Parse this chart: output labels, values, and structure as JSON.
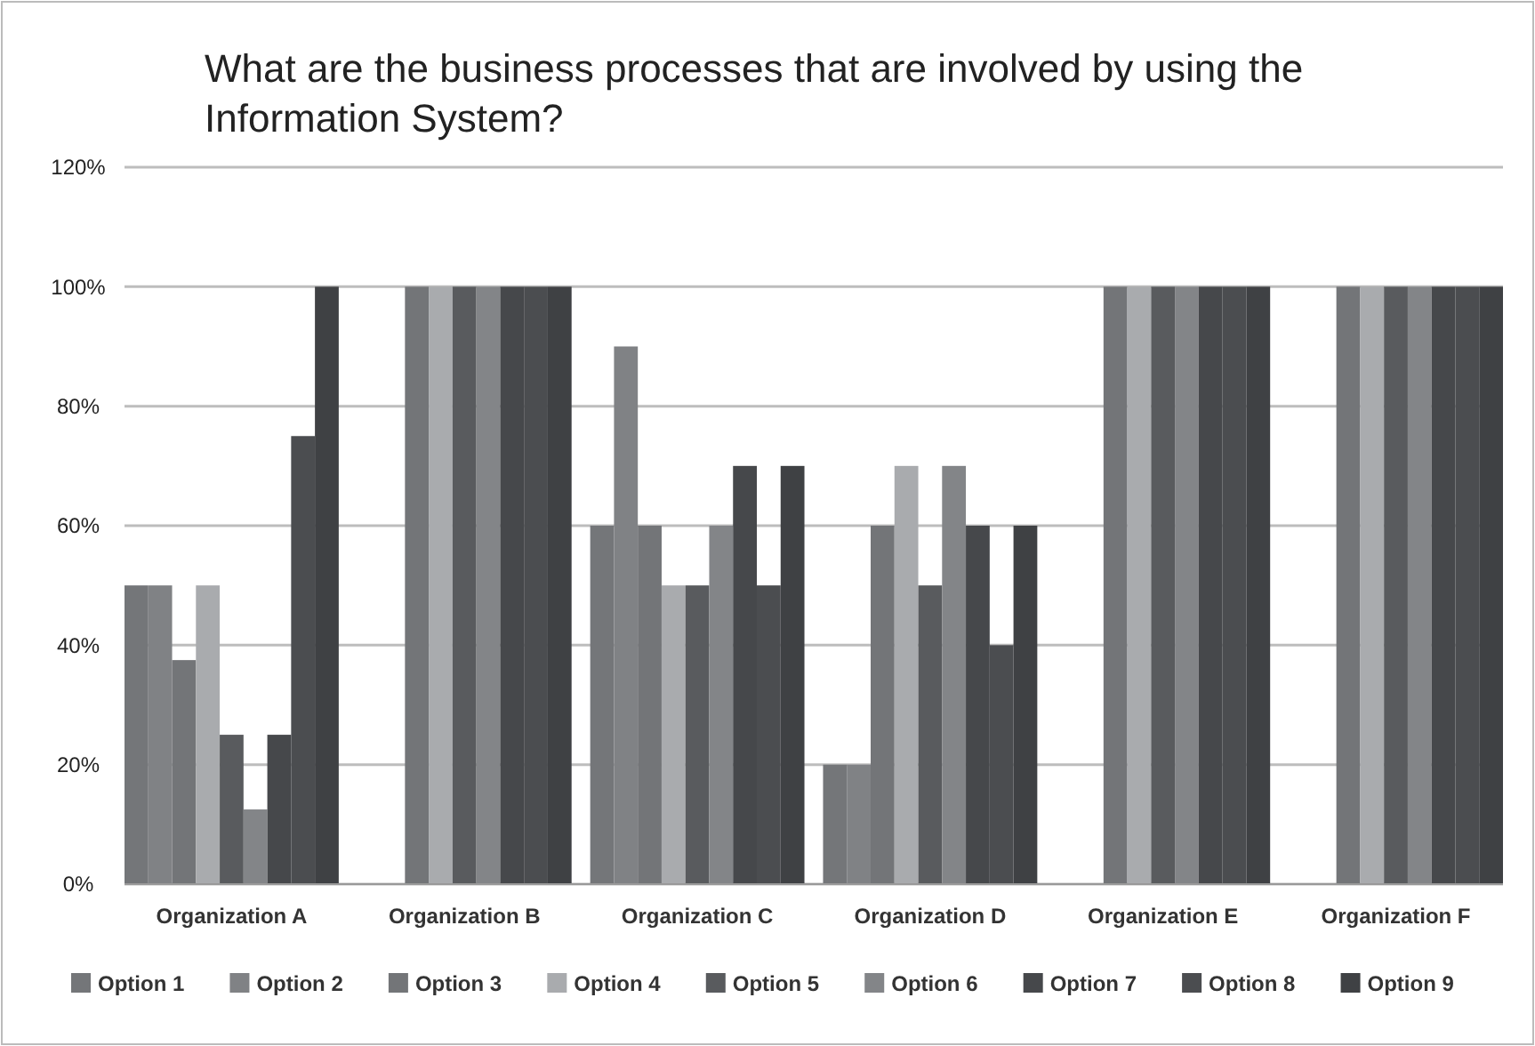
{
  "chart_data": {
    "type": "bar",
    "title": "What are the business processes that are involved by using the Information System?",
    "categories": [
      "Organization A",
      "Organization B",
      "Organization C",
      "Organization D",
      "Organization E",
      "Organization F"
    ],
    "series": [
      {
        "name": "Option 1",
        "color": "#747679",
        "values": [
          50,
          0,
          60,
          20,
          0,
          0
        ]
      },
      {
        "name": "Option 2",
        "color": "#808285",
        "values": [
          50,
          0,
          90,
          20,
          0,
          0
        ]
      },
      {
        "name": "Option 3",
        "color": "#737578",
        "values": [
          37.5,
          100,
          60,
          60,
          100,
          100
        ]
      },
      {
        "name": "Option 4",
        "color": "#a9abae",
        "values": [
          50,
          100,
          50,
          70,
          100,
          100
        ]
      },
      {
        "name": "Option 5",
        "color": "#595b5e",
        "values": [
          25,
          100,
          50,
          50,
          100,
          100
        ]
      },
      {
        "name": "Option 6",
        "color": "#838588",
        "values": [
          12.5,
          100,
          60,
          70,
          100,
          100
        ]
      },
      {
        "name": "Option 7",
        "color": "#46484b",
        "values": [
          25,
          100,
          70,
          60,
          100,
          100
        ]
      },
      {
        "name": "Option 8",
        "color": "#4b4d50",
        "values": [
          75,
          100,
          50,
          40,
          100,
          100
        ]
      },
      {
        "name": "Option 9",
        "color": "#3f4144",
        "values": [
          100,
          100,
          70,
          60,
          100,
          100
        ]
      }
    ],
    "ylim": [
      0,
      120
    ],
    "yticks": [
      {
        "value": 0,
        "label": "0%"
      },
      {
        "value": 20,
        "label": "20%"
      },
      {
        "value": 40,
        "label": "40%"
      },
      {
        "value": 60,
        "label": "60%"
      },
      {
        "value": 80,
        "label": "80%"
      },
      {
        "value": 100,
        "label": "100%"
      },
      {
        "value": 120,
        "label": "120%"
      }
    ],
    "grid": "y",
    "legend": "bottom"
  }
}
